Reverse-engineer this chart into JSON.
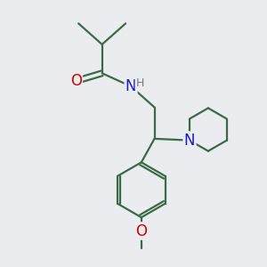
{
  "bg_color": "#eaecf0",
  "bond_color": "#3a6b45",
  "bond_width": 1.6,
  "atom_colors": {
    "O": "#cc0000",
    "N": "#1a1acc",
    "C": "#000000",
    "H": "#777777"
  },
  "font_size_large": 11,
  "font_size_small": 10
}
